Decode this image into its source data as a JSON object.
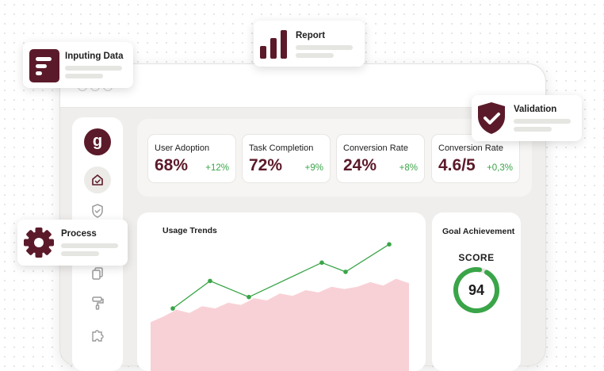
{
  "stats": [
    {
      "label": "User Adoption",
      "value": "68%",
      "delta": "+12%"
    },
    {
      "label": "Task Completion",
      "value": "72%",
      "delta": "+9%"
    },
    {
      "label": "Conversion Rate",
      "value": "24%",
      "delta": "+8%"
    },
    {
      "label": "Conversion Rate",
      "value": "4.6/5",
      "delta": "+0,3%"
    }
  ],
  "sidebar": {
    "logo_letter": "g",
    "icons": [
      "home-icon",
      "shield-check-icon",
      "copy-icon",
      "paint-roller-icon",
      "puzzle-icon"
    ]
  },
  "usage_trends": {
    "title": "Usage Trends"
  },
  "goal": {
    "title": "Goal Achievement",
    "score_label": "SCORE",
    "score_value": "94",
    "progress_fraction": 0.94
  },
  "floating_cards": {
    "inputing": {
      "title": "Inputing Data",
      "icon": "document-lines-icon"
    },
    "report": {
      "title": "Report",
      "icon": "bar-chart-icon"
    },
    "validation": {
      "title": "Validation",
      "icon": "shield-check-icon"
    },
    "process": {
      "title": "Process",
      "icon": "gear-icon"
    }
  },
  "colors": {
    "brand": "#5b1a2a",
    "positive": "#3aa548",
    "area_fill": "#f7c9cf",
    "gauge_track": "#e3e3e0"
  },
  "chart_data": {
    "type": "line",
    "title": "Usage Trends",
    "series": [
      {
        "values": [
          2.0,
          4.4,
          3.0,
          6.0,
          5.2,
          7.6
        ]
      }
    ],
    "area_values": [
      0.8,
      1.3,
      1.9,
      1.6,
      2.2,
      2.0,
      2.5,
      2.3,
      2.9,
      2.7,
      3.3,
      3.1,
      3.6,
      3.4,
      3.9,
      3.7,
      3.9,
      4.3,
      4.0,
      4.6,
      4.2
    ],
    "ylim": [
      0,
      9
    ],
    "grid": false,
    "legend": "none"
  }
}
